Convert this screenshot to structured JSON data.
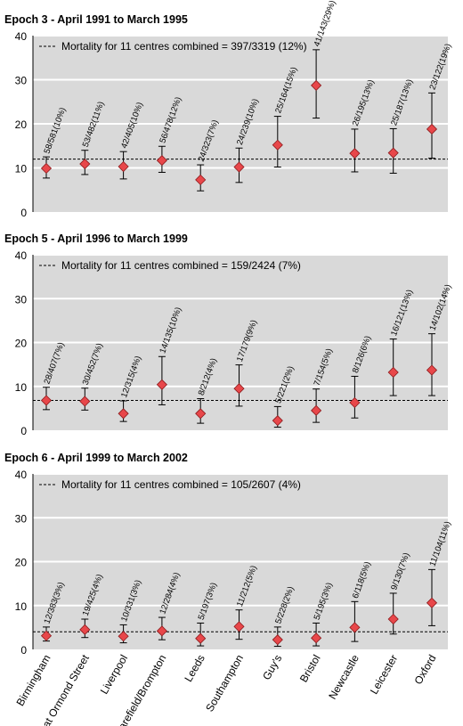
{
  "chart_data": [
    {
      "type": "scatter",
      "title": "Epoch 3 - April 1991 to March 1995",
      "ylim": [
        0,
        40
      ],
      "yticks": [
        0,
        10,
        20,
        30,
        40
      ],
      "grid": true,
      "legend": "top-left",
      "reference_line": {
        "label": "Mortality for 11 centres combined = 397/3319 (12%)",
        "value": 12
      },
      "categories": [
        "Birmingham",
        "Great Ormond Street",
        "Liverpool",
        "Harefield/Brompton",
        "Leeds",
        "Southampton",
        "Guy's",
        "Bristol",
        "Newcastle",
        "Leicester",
        "Oxford"
      ],
      "values": [
        9.9,
        10.9,
        10.3,
        11.7,
        7.3,
        10.2,
        15.2,
        28.7,
        13.3,
        13.4,
        18.8
      ],
      "lower": [
        7.7,
        8.5,
        7.5,
        9.0,
        4.8,
        6.7,
        10.2,
        21.3,
        9.1,
        8.8,
        12.2
      ],
      "upper": [
        12.5,
        14.0,
        13.7,
        14.9,
        10.7,
        14.5,
        21.7,
        36.8,
        18.8,
        18.9,
        27.0
      ],
      "labels": [
        "58/581(10%)",
        "53/482(11%)",
        "42/405(10%)",
        "56/478(12%)",
        "24/323(7%)",
        "24/239(10%)",
        "25/164(15%)",
        "41/143(29%)",
        "26/195(13%)",
        "25/187(13%)",
        "23/122(19%)"
      ]
    },
    {
      "type": "scatter",
      "title": "Epoch 5 - April 1996 to March 1999",
      "ylim": [
        0,
        40
      ],
      "yticks": [
        0,
        10,
        20,
        30,
        40
      ],
      "grid": true,
      "legend": "top-left",
      "reference_line": {
        "label": "Mortality for 11 centres combined = 159/2424 (7%)",
        "value": 6.8
      },
      "categories": [
        "Birmingham",
        "Great Ormond Street",
        "Liverpool",
        "Harefield/Brompton",
        "Leeds",
        "Southampton",
        "Guy's",
        "Bristol",
        "Newcastle",
        "Leicester",
        "Oxford"
      ],
      "values": [
        6.8,
        6.6,
        3.8,
        10.4,
        3.8,
        9.5,
        2.2,
        4.5,
        6.3,
        13.2,
        13.7
      ],
      "lower": [
        4.7,
        4.6,
        2.0,
        5.8,
        1.6,
        5.5,
        0.7,
        1.8,
        2.8,
        7.9,
        7.9
      ],
      "upper": [
        9.8,
        9.6,
        6.7,
        16.8,
        7.2,
        14.9,
        5.4,
        9.4,
        12.3,
        20.8,
        22.0
      ],
      "labels": [
        "28/407(7%)",
        "30/452(7%)",
        "12/315(4%)",
        "14/135(10%)",
        "8/212(4%)",
        "17/179(9%)",
        "5/221(2%)",
        "7/154(5%)",
        "8/126(6%)",
        "16/121(13%)",
        "14/102(14%)"
      ]
    },
    {
      "type": "scatter",
      "title": "Epoch 6 - April 1999 to March 2002",
      "ylim": [
        0,
        40
      ],
      "yticks": [
        0,
        10,
        20,
        30,
        40
      ],
      "grid": true,
      "legend": "top-left",
      "reference_line": {
        "label": "Mortality for 11 centres combined = 105/2607 (4%)",
        "value": 4.0
      },
      "categories": [
        "Birmingham",
        "Great Ormond Street",
        "Liverpool",
        "Harefield/Brompton",
        "Leeds",
        "Southampton",
        "Guy's",
        "Bristol",
        "Newcastle",
        "Leicester",
        "Oxford"
      ],
      "values": [
        3.1,
        4.5,
        3.0,
        4.2,
        2.5,
        5.2,
        2.2,
        2.6,
        5.0,
        6.9,
        10.6
      ],
      "lower": [
        1.9,
        2.7,
        1.5,
        2.2,
        0.8,
        2.3,
        0.7,
        0.8,
        1.8,
        3.5,
        5.4
      ],
      "upper": [
        5.1,
        6.9,
        5.6,
        7.3,
        6.0,
        9.0,
        5.1,
        6.0,
        10.9,
        12.8,
        18.2
      ],
      "labels": [
        "12/383(3%)",
        "19/425(4%)",
        "10/331(3%)",
        "12/284(4%)",
        "5/197(3%)",
        "11/212(5%)",
        "5/228(2%)",
        "5/195(3%)",
        "6/118(5%)",
        "9/130(7%)",
        "11/104(11%)"
      ]
    }
  ]
}
